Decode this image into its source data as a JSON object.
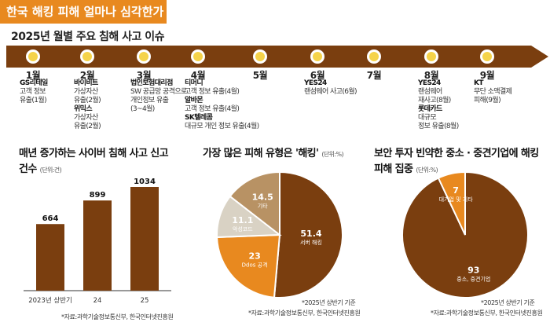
{
  "header": {
    "banner_title": "한국 해킹 피해 얼마나 심각한가"
  },
  "timeline": {
    "title": "2025년 월별 주요 침해 사고 이슈",
    "months": [
      {
        "label": "1월",
        "events": [
          {
            "name": "GS리테일",
            "details": [
              "고객 정보",
              "유출(1월)"
            ]
          }
        ]
      },
      {
        "label": "2월",
        "events": [
          {
            "name": "바이비트",
            "details": [
              "가상자산",
              "유출(2월)"
            ]
          },
          {
            "name": "위믹스",
            "details": [
              "가상자산",
              "유출(2월)"
            ]
          }
        ]
      },
      {
        "label": "3월",
        "events": [
          {
            "name": "법인보험대리점",
            "details": [
              "SW 공급망 공격으로",
              "개인정보 유출",
              "(3~4월)"
            ]
          }
        ]
      },
      {
        "label": "4월",
        "events": [
          {
            "name": "티머니",
            "details": [
              "고객 정보 유출(4월)"
            ]
          },
          {
            "name": "알바몬",
            "details": [
              "고객 정보 유출(4월)"
            ]
          },
          {
            "name": "SK텔레콤",
            "details": [
              "대규모 개인 정보 유출(4월)"
            ]
          }
        ]
      },
      {
        "label": "5월",
        "events": []
      },
      {
        "label": "6월",
        "events": [
          {
            "name": "YES24",
            "details": [
              "랜섬웨어 사고(6월)"
            ]
          }
        ]
      },
      {
        "label": "7월",
        "events": []
      },
      {
        "label": "8월",
        "events": [
          {
            "name": "YES24",
            "details": [
              "랜섬웨어",
              "재사고(8월)"
            ]
          },
          {
            "name": "롯데카드",
            "details": [
              "대규모",
              "정보 유출(8월)"
            ]
          }
        ]
      },
      {
        "label": "9월",
        "events": [
          {
            "name": "KT",
            "details": [
              "무단 소액결제",
              "피해(9월)"
            ]
          }
        ]
      }
    ]
  },
  "chart_data": [
    {
      "type": "bar",
      "title": "매년 증가하는 사이버 침해 사고 신고 건수",
      "unit": "(단위:건)",
      "categories": [
        "2023년 상반기",
        "24",
        "25"
      ],
      "values": [
        664,
        899,
        1034
      ],
      "ylim": [
        0,
        1034
      ],
      "color": "#7a3e0f",
      "source": "*자료:과학기술정보통신부, 한국인터넷진흥원"
    },
    {
      "type": "pie",
      "title": "가장 많은 피해 유형은 '해킹'",
      "unit": "(단위:%)",
      "slices": [
        {
          "label": "서버 해킹",
          "value": 51.4,
          "color": "#7a3e0f",
          "text_color": "#ffffff"
        },
        {
          "label": "Ddos 공격",
          "value": 23,
          "color": "#e8891f",
          "text_color": "#ffffff"
        },
        {
          "label": "악성코드",
          "value": 11.1,
          "color": "#d9d2c4",
          "text_color": "#ffffff"
        },
        {
          "label": "기타",
          "value": 14.5,
          "color": "#b89264",
          "text_color": "#ffffff"
        }
      ],
      "note": "*2025년 상반기 기준",
      "source": "*자료:과학기술정보통신부, 한국인터넷진흥원"
    },
    {
      "type": "pie",
      "title": "보안 투자 빈약한 중소 · 중견기업에 해킹 피해 집중",
      "unit": "(단위:%)",
      "slices": [
        {
          "label": "중소, 중견기업",
          "value": 93,
          "color": "#7a3e0f",
          "text_color": "#ffffff"
        },
        {
          "label": "대기업 및 기타",
          "value": 7,
          "color": "#e8891f",
          "text_color": "#ffffff"
        }
      ],
      "note": "*2025년 상반기 기준",
      "source": "*자료:과학기술정보통신부, 한국인터넷진흥원"
    }
  ],
  "colors": {
    "accent": "#e8891f",
    "brown": "#7a3e0f",
    "dot_fill": "#f5d34a"
  }
}
